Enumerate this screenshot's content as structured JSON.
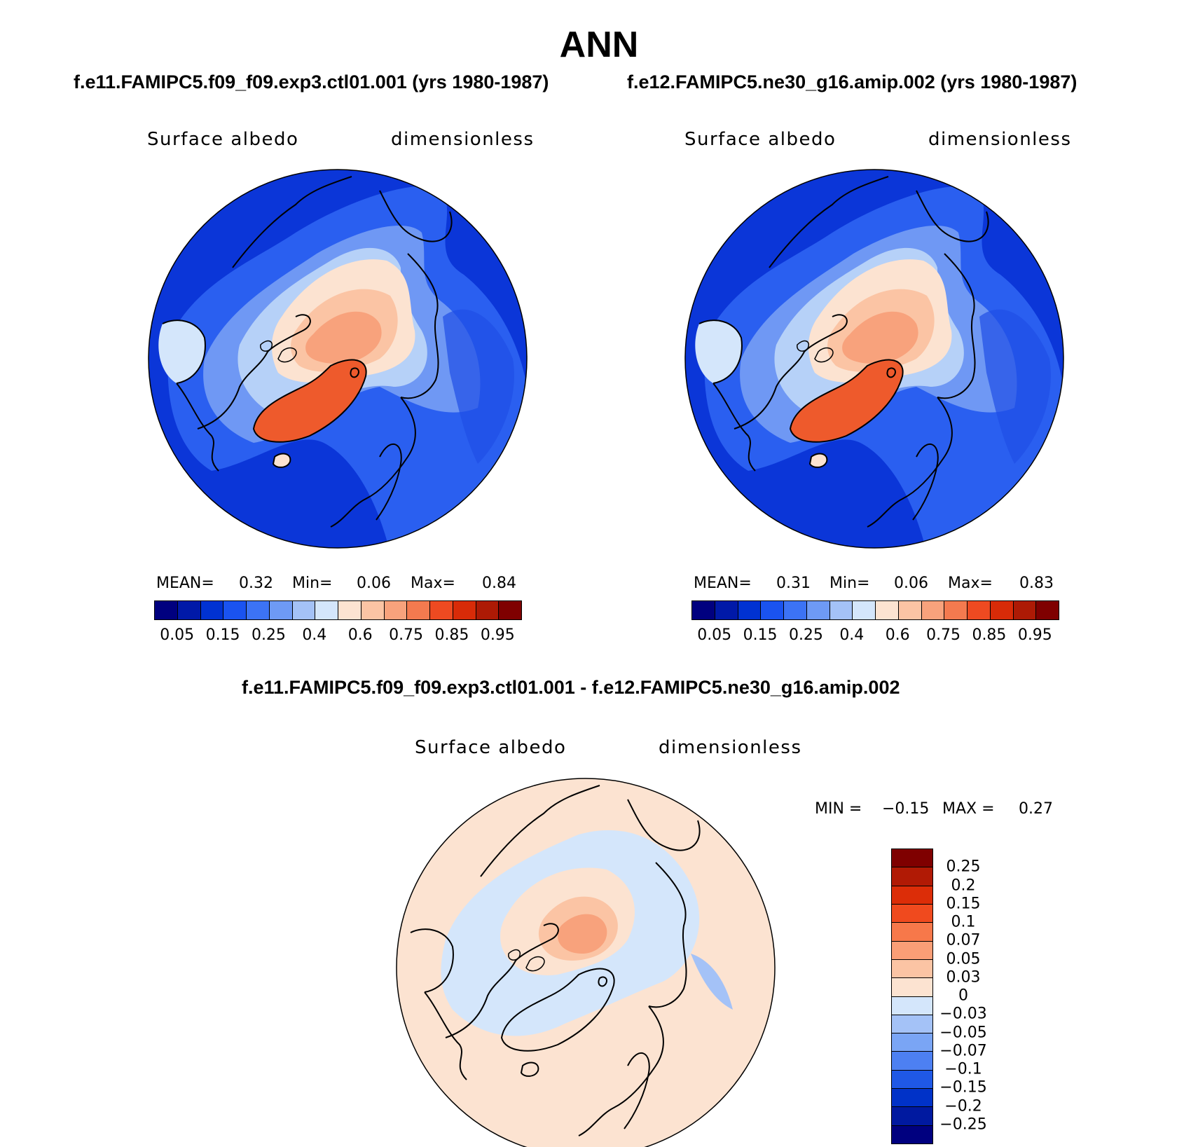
{
  "title": "ANN",
  "panels": [
    {
      "case": "f.e11.FAMIPC5.f09_f09.exp3.ctl01.001 (yrs 1980-1987)",
      "variable": "Surface albedo",
      "units": "dimensionless",
      "mean_label": "MEAN=",
      "mean_value": "0.32",
      "min_label": "Min=",
      "min_value": "0.06",
      "max_label": "Max=",
      "max_value": "0.84"
    },
    {
      "case": "f.e12.FAMIPC5.ne30_g16.amip.002 (yrs 1980-1987)",
      "variable": "Surface albedo",
      "units": "dimensionless",
      "mean_label": "MEAN=",
      "mean_value": "0.31",
      "min_label": "Min=",
      "min_value": "0.06",
      "max_label": "Max=",
      "max_value": "0.83"
    }
  ],
  "diff": {
    "title": "f.e11.FAMIPC5.f09_f09.exp3.ctl01.001 - f.e12.FAMIPC5.ne30_g16.amip.002",
    "variable": "Surface albedo",
    "units": "dimensionless",
    "min_label": "MIN =",
    "min_value": "−0.15",
    "max_label": "MAX =",
    "max_value": "0.27"
  },
  "colorbar_main": {
    "colors": [
      "#00007f",
      "#0019a8",
      "#0032d2",
      "#1a53f0",
      "#3c73f5",
      "#6e9af5",
      "#a4c2f7",
      "#d4e6fb",
      "#fce3d1",
      "#fbc4a4",
      "#f8a27c",
      "#f47a4f",
      "#ee4a21",
      "#d82b08",
      "#ad1a05",
      "#7f0000"
    ],
    "tick_labels": [
      "0.05",
      "0.15",
      "0.25",
      "0.4",
      "0.6",
      "0.75",
      "0.85",
      "0.95"
    ]
  },
  "colorbar_diff": {
    "colors": [
      "#7f0000",
      "#b11a05",
      "#dc2d08",
      "#f04a1e",
      "#f7784a",
      "#fa9e76",
      "#fbc4a4",
      "#fce3d1",
      "#d4e6fb",
      "#a4c2f7",
      "#7aa5f5",
      "#4d80f2",
      "#1f58e6",
      "#0032c8",
      "#0019a0",
      "#00007f"
    ],
    "tick_labels": [
      "0.25",
      "0.2",
      "0.15",
      "0.1",
      "0.07",
      "0.05",
      "0.03",
      "0",
      "−0.03",
      "−0.05",
      "−0.07",
      "−0.1",
      "−0.15",
      "−0.2",
      "−0.25"
    ]
  }
}
